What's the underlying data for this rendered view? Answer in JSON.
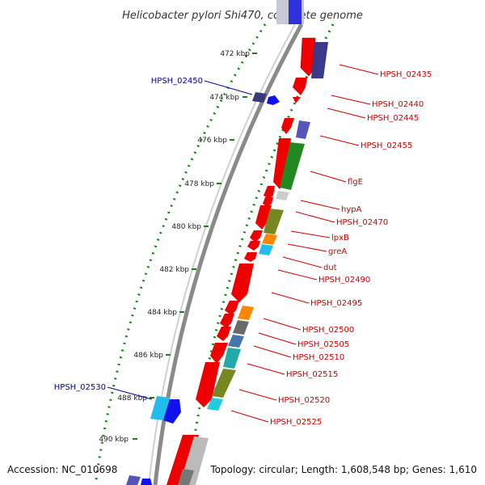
{
  "title": "Helicobacter pylori Shi470, complete genome",
  "footer": {
    "accession": "Accession: NC_010698",
    "topology": "Topology: circular; Length: 1,608,548 bp; Genes: 1,610"
  },
  "colors": {
    "label_forward": "#cc0000",
    "label_reverse": "#000099",
    "backbone": "#888888",
    "tick_dots": "#118811"
  },
  "ticks": [
    {
      "label": "472 kbp"
    },
    {
      "label": "474 kbp"
    },
    {
      "label": "476 kbp"
    },
    {
      "label": "478 kbp"
    },
    {
      "label": "480 kbp"
    },
    {
      "label": "482 kbp"
    },
    {
      "label": "484 kbp"
    },
    {
      "label": "486 kbp"
    },
    {
      "label": "488 kbp"
    },
    {
      "label": "490 kbp"
    }
  ],
  "gene_labels": [
    {
      "text": "HPSH_02435",
      "strand": "forward"
    },
    {
      "text": "HPSH_02440",
      "strand": "forward"
    },
    {
      "text": "HPSH_02445",
      "strand": "forward"
    },
    {
      "text": "HPSH_02450",
      "strand": "reverse"
    },
    {
      "text": "HPSH_02455",
      "strand": "forward"
    },
    {
      "text": "flgE",
      "strand": "forward"
    },
    {
      "text": "hypA",
      "strand": "forward"
    },
    {
      "text": "HPSH_02470",
      "strand": "forward"
    },
    {
      "text": "lpxB",
      "strand": "forward"
    },
    {
      "text": "greA",
      "strand": "forward"
    },
    {
      "text": "dut",
      "strand": "forward"
    },
    {
      "text": "HPSH_02490",
      "strand": "forward"
    },
    {
      "text": "HPSH_02495",
      "strand": "forward"
    },
    {
      "text": "HPSH_02500",
      "strand": "forward"
    },
    {
      "text": "HPSH_02505",
      "strand": "forward"
    },
    {
      "text": "HPSH_02510",
      "strand": "forward"
    },
    {
      "text": "HPSH_02515",
      "strand": "forward"
    },
    {
      "text": "HPSH_02520",
      "strand": "forward"
    },
    {
      "text": "HPSH_02525",
      "strand": "forward"
    },
    {
      "text": "HPSH_02530",
      "strand": "reverse"
    }
  ]
}
